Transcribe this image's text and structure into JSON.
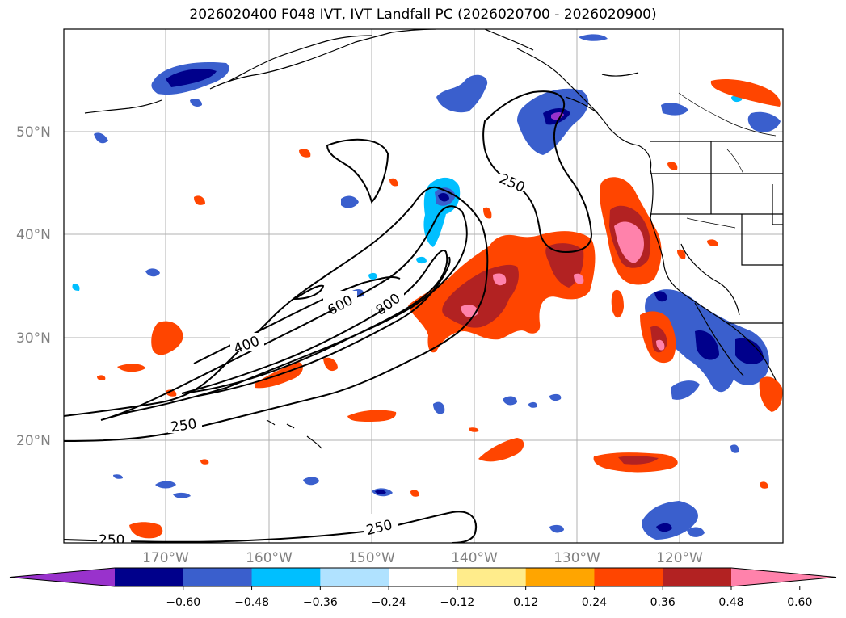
{
  "title": "2026020400 F048 IVT, IVT Landfall PC (2026020700 - 2026020900)",
  "map": {
    "lat_labels": [
      "50°N",
      "40°N",
      "30°N",
      "20°N"
    ],
    "lon_labels": [
      "170°W",
      "160°W",
      "150°W",
      "140°W",
      "130°W",
      "120°W"
    ],
    "grid": true,
    "contour_labels": [
      "250",
      "400",
      "600",
      "800",
      "250",
      "250",
      "250"
    ]
  },
  "colorbar": {
    "colors": [
      "#9932cc",
      "#00008b",
      "#3a5fcd",
      "#00bfff",
      "#b0e2ff",
      "#ffffff",
      "#ffec8b",
      "#ffa500",
      "#ff4500",
      "#b22222",
      "#ff82ab"
    ],
    "tick_labels": [
      "−0.60",
      "−0.48",
      "−0.36",
      "−0.24",
      "−0.12",
      "0.12",
      "0.24",
      "0.36",
      "0.48",
      "0.60"
    ]
  }
}
